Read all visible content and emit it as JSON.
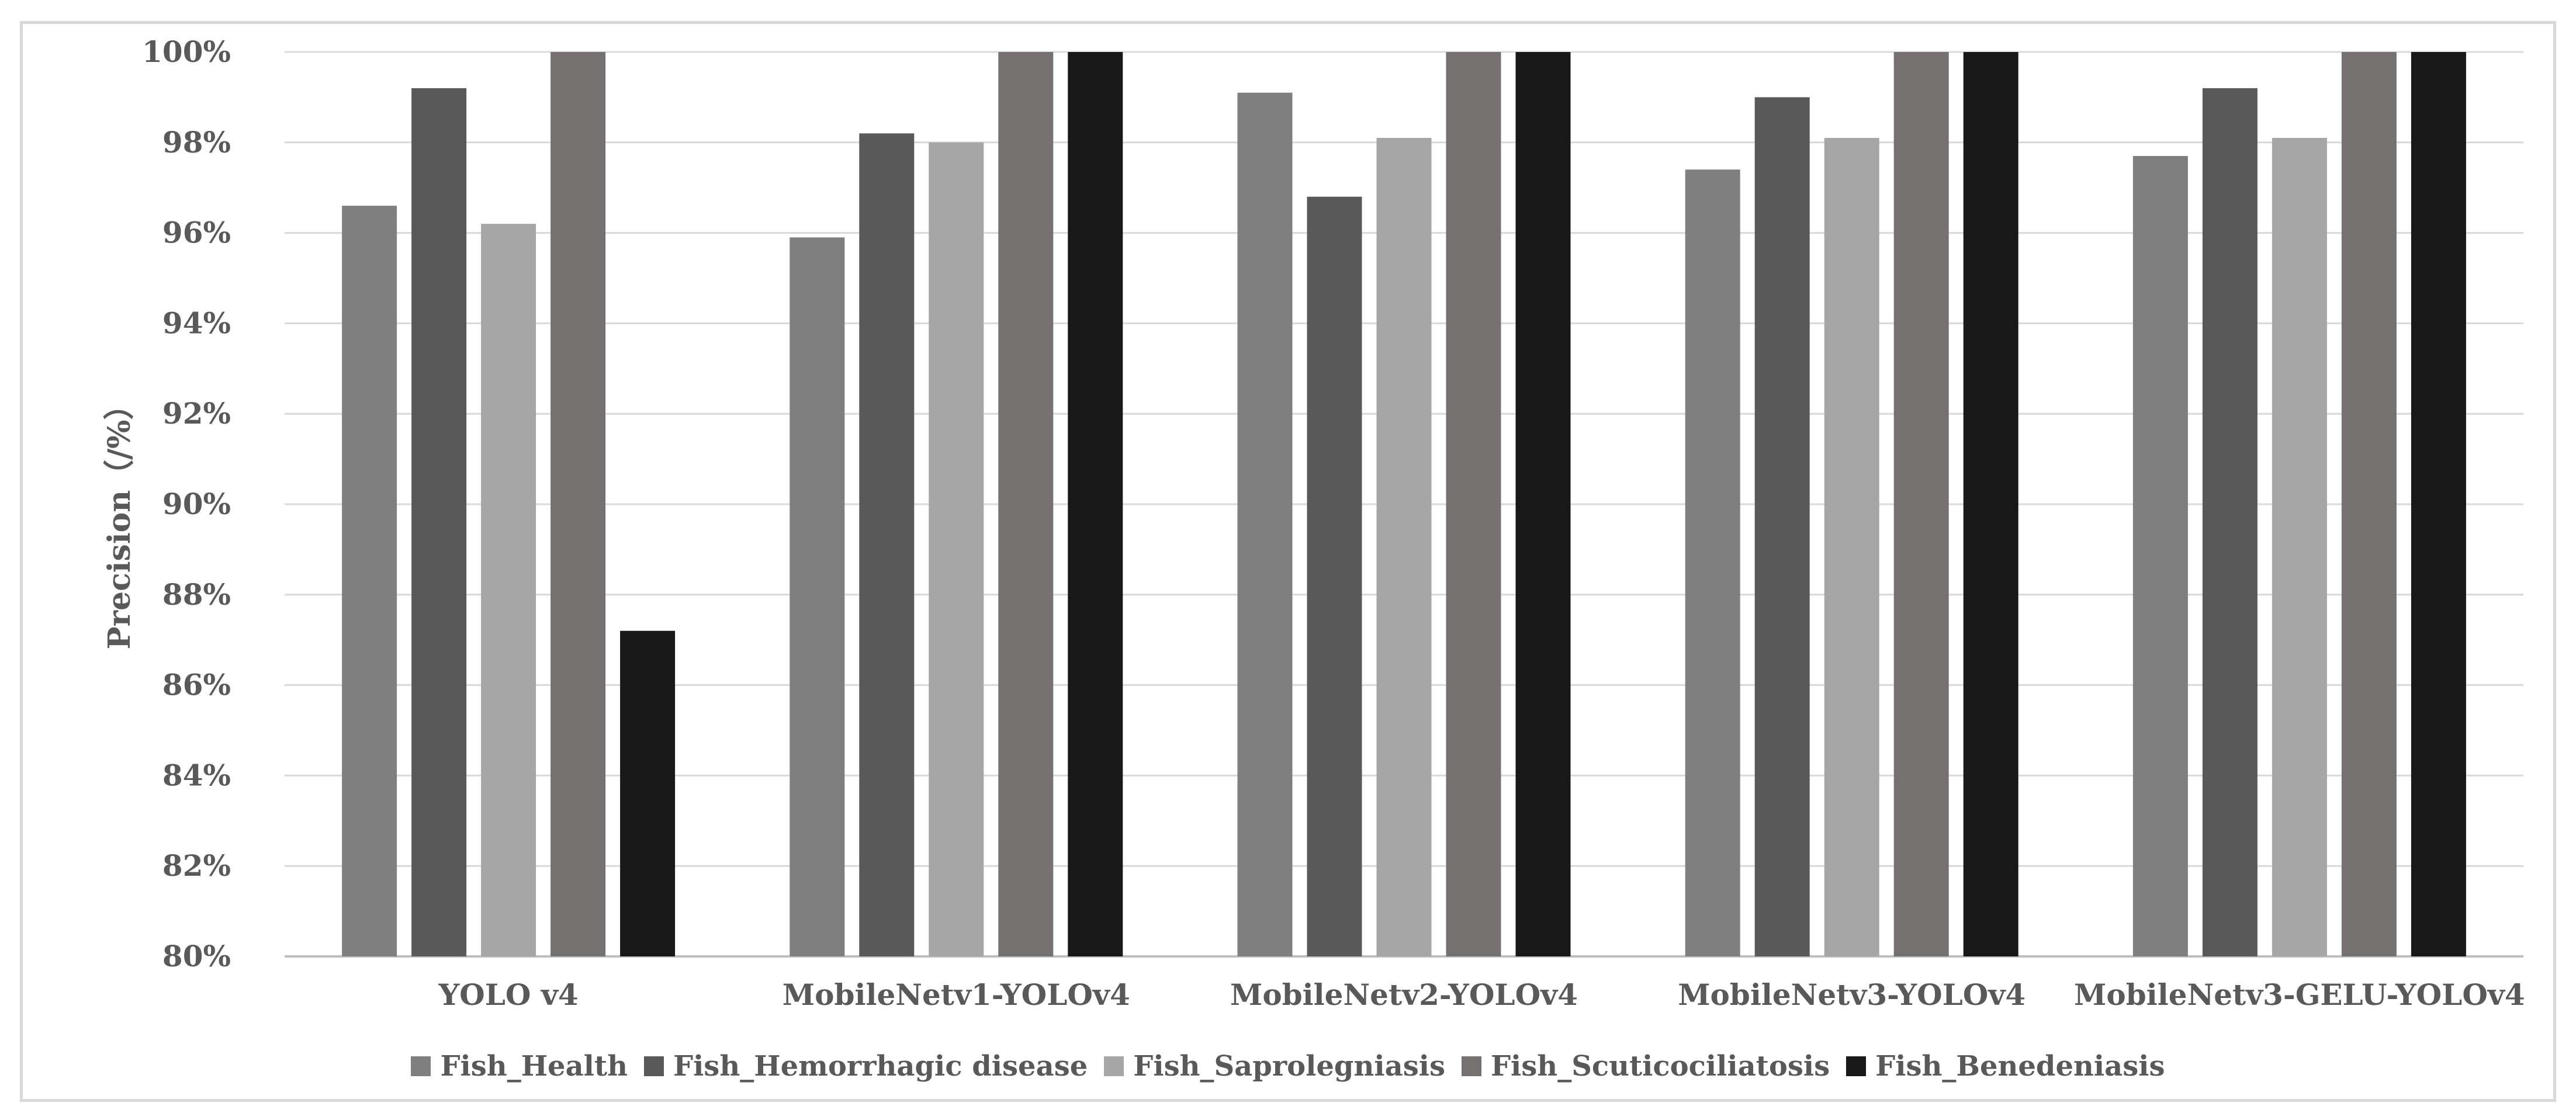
{
  "chart_data": {
    "type": "bar",
    "title": "",
    "xlabel": "",
    "ylabel": "Precision（/%）",
    "ylim": [
      80,
      100
    ],
    "yticks": [
      80,
      82,
      84,
      86,
      88,
      90,
      92,
      94,
      96,
      98,
      100
    ],
    "ytick_suffix": "%",
    "grid": true,
    "legend_position": "bottom",
    "categories": [
      "YOLO v4",
      "MobileNetv1-YOLOv4",
      "MobileNetv2-YOLOv4",
      "MobileNetv3-YOLOv4",
      "MobileNetv3-GELU-YOLOv4"
    ],
    "series": [
      {
        "name": "Fish_Health",
        "color": "#7f7f7f",
        "values": [
          96.6,
          95.9,
          99.1,
          97.4,
          97.7
        ]
      },
      {
        "name": "Fish_Hemorrhagic disease",
        "color": "#595959",
        "values": [
          99.2,
          98.2,
          96.8,
          99.0,
          99.2
        ]
      },
      {
        "name": "Fish_Saprolegniasis",
        "color": "#a6a6a6",
        "values": [
          96.2,
          98.0,
          98.1,
          98.1,
          98.1
        ]
      },
      {
        "name": "Fish_Scuticociliatosis",
        "color": "#757171",
        "values": [
          100,
          100,
          100,
          100,
          100
        ]
      },
      {
        "name": "Fish_Benedeniasis",
        "color": "#181818",
        "values": [
          87.2,
          100,
          100,
          100,
          100
        ]
      }
    ]
  }
}
